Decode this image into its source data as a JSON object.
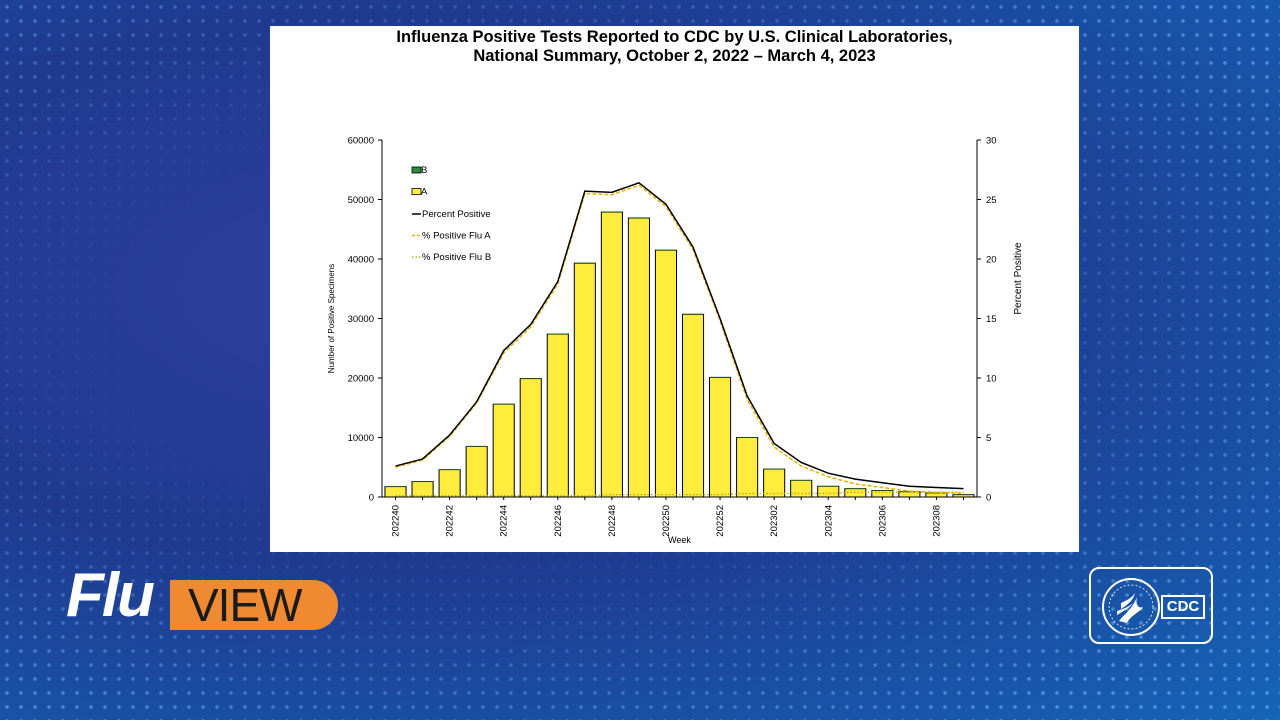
{
  "chart_data": {
    "type": "bar",
    "title": "Influenza Positive Tests Reported to CDC by U.S. Clinical Laboratories,",
    "subtitle": "National Summary, October 2, 2022 – March 4, 2023",
    "xlabel": "Week",
    "ylabel": "Number of Positive Specimens",
    "y2label": "Percent Positive",
    "ylim": [
      0,
      60000
    ],
    "y2lim": [
      0,
      30
    ],
    "yticks": [
      "0",
      "10000",
      "20000",
      "30000",
      "40000",
      "50000",
      "60000"
    ],
    "y2ticks": [
      "0",
      "5",
      "10",
      "15",
      "20",
      "25",
      "30"
    ],
    "weeks": [
      "202240",
      "202241",
      "202242",
      "202243",
      "202244",
      "202245",
      "202246",
      "202247",
      "202248",
      "202249",
      "202250",
      "202251",
      "202252",
      "202301",
      "202302",
      "202303",
      "202304",
      "202305",
      "202306",
      "202307",
      "202308",
      "202309"
    ],
    "xtick_labels": [
      "202240",
      "",
      "202242",
      "",
      "202244",
      "",
      "202246",
      "",
      "202248",
      "",
      "202250",
      "",
      "202252",
      "",
      "202302",
      "",
      "202304",
      "",
      "202306",
      "",
      "202308",
      ""
    ],
    "legend": [
      "B",
      "A",
      "Percent Positive",
      "% Positive Flu A",
      "% Positive Flu B"
    ],
    "legend_position": "top-left",
    "colors": {
      "A": "#ffec3c",
      "B": "#2e8b3e",
      "percent_positive": "#000000",
      "flu_a": "#e8b300",
      "flu_b": "#b3ab00"
    },
    "series": [
      {
        "name": "A",
        "kind": "bar",
        "values": [
          1750,
          2600,
          4600,
          8500,
          15600,
          19900,
          27400,
          39300,
          47900,
          46900,
          41500,
          30700,
          20100,
          10000,
          4700,
          2800,
          1800,
          1400,
          1100,
          900,
          700,
          400
        ]
      },
      {
        "name": "B",
        "kind": "bar",
        "values": [
          30,
          30,
          40,
          50,
          60,
          70,
          80,
          90,
          100,
          100,
          100,
          90,
          80,
          70,
          60,
          60,
          60,
          60,
          60,
          60,
          60,
          60
        ]
      },
      {
        "name": "Percent Positive",
        "kind": "line",
        "values": [
          2.6,
          3.2,
          5.2,
          8.0,
          12.3,
          14.5,
          18.1,
          25.7,
          25.6,
          26.4,
          24.6,
          21.0,
          15.0,
          8.5,
          4.5,
          2.9,
          2.0,
          1.5,
          1.2,
          0.9,
          0.8,
          0.7
        ]
      },
      {
        "name": "% Positive Flu A",
        "kind": "line",
        "values": [
          2.5,
          3.1,
          5.1,
          7.9,
          12.1,
          14.3,
          17.9,
          25.5,
          25.4,
          26.2,
          24.4,
          20.8,
          14.8,
          8.2,
          4.2,
          2.6,
          1.7,
          1.1,
          0.8,
          0.5,
          0.4,
          0.3
        ]
      },
      {
        "name": "% Positive Flu B",
        "kind": "line",
        "values": [
          0.1,
          0.1,
          0.1,
          0.1,
          0.1,
          0.1,
          0.1,
          0.1,
          0.2,
          0.2,
          0.2,
          0.2,
          0.2,
          0.3,
          0.3,
          0.3,
          0.3,
          0.4,
          0.4,
          0.4,
          0.4,
          0.4
        ]
      }
    ],
    "grid": false
  },
  "branding": {
    "flu_word": "Flu",
    "view_word": "VIEW",
    "cdc_label": "CDC",
    "accent_color": "#ef8a33"
  }
}
